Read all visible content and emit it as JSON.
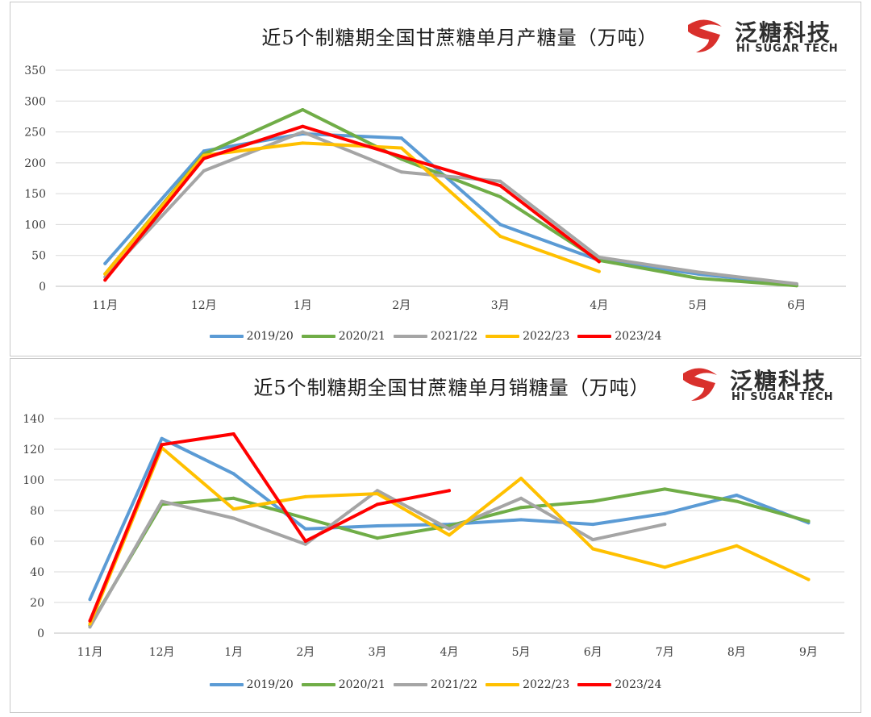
{
  "logo": {
    "cn": "泛糖科技",
    "en": "HI SUGAR TECH"
  },
  "colors": {
    "2019/20": "#5b9bd5",
    "2020/21": "#70ad47",
    "2021/22": "#a5a5a5",
    "2022/23": "#ffc000",
    "2023/24": "#ff0000"
  },
  "chart_data": [
    {
      "type": "line",
      "title": "近5个制糖期全国甘蔗糖单月产糖量（万吨）",
      "categories": [
        "11月",
        "12月",
        "1月",
        "2月",
        "3月",
        "4月",
        "5月",
        "6月"
      ],
      "ylim": [
        0,
        350
      ],
      "yticks": [
        0,
        50,
        100,
        150,
        200,
        250,
        300,
        350
      ],
      "grid": true,
      "legend_position": "bottom",
      "series": [
        {
          "name": "2019/20",
          "values": [
            37,
            219,
            247,
            240,
            100,
            42,
            20,
            3
          ]
        },
        {
          "name": "2020/21",
          "values": [
            20,
            214,
            286,
            206,
            145,
            42,
            13,
            1
          ]
        },
        {
          "name": "2021/22",
          "values": [
            15,
            187,
            250,
            185,
            170,
            47,
            23,
            4
          ]
        },
        {
          "name": "2022/23",
          "values": [
            20,
            212,
            232,
            224,
            81,
            24,
            null,
            null
          ]
        },
        {
          "name": "2023/24",
          "values": [
            10,
            207,
            259,
            210,
            163,
            40,
            null,
            null
          ]
        }
      ]
    },
    {
      "type": "line",
      "title": "近5个制糖期全国甘蔗糖单月销糖量（万吨）",
      "categories": [
        "11月",
        "12月",
        "1月",
        "2月",
        "3月",
        "4月",
        "5月",
        "6月",
        "7月",
        "8月",
        "9月"
      ],
      "ylim": [
        0,
        140
      ],
      "yticks": [
        0,
        20,
        40,
        60,
        80,
        100,
        120,
        140
      ],
      "grid": true,
      "legend_position": "bottom",
      "series": [
        {
          "name": "2019/20",
          "values": [
            22,
            127,
            104,
            68,
            70,
            71,
            74,
            71,
            78,
            90,
            72
          ]
        },
        {
          "name": "2020/21",
          "values": [
            5,
            84,
            88,
            75,
            62,
            70,
            82,
            86,
            94,
            86,
            73
          ]
        },
        {
          "name": "2021/22",
          "values": [
            4,
            86,
            75,
            58,
            93,
            68,
            88,
            61,
            71,
            null,
            null
          ]
        },
        {
          "name": "2022/23",
          "values": [
            6,
            121,
            81,
            89,
            91,
            64,
            101,
            55,
            43,
            57,
            35
          ]
        },
        {
          "name": "2023/24",
          "values": [
            8,
            123,
            130,
            60,
            84,
            93,
            null,
            null,
            null,
            null,
            null
          ]
        }
      ]
    }
  ]
}
